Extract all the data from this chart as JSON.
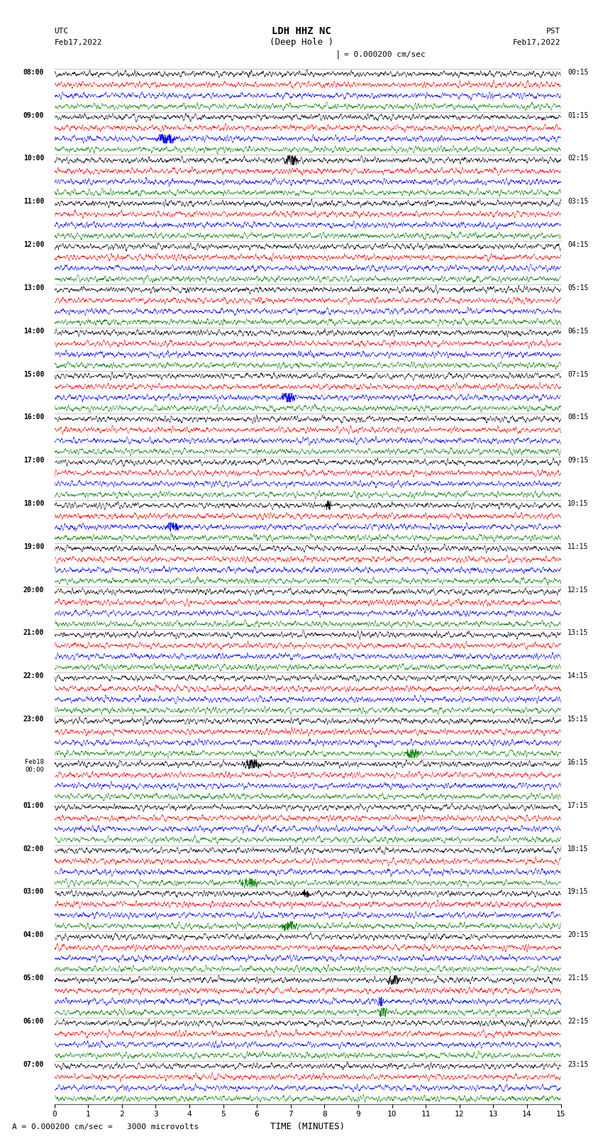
{
  "title_line1": "LDH HHZ NC",
  "title_line2": "(Deep Hole )",
  "scale_label": "= 0.000200 cm/sec",
  "bottom_label": "A = 0.000200 cm/sec =   3000 microvolts",
  "xlabel": "TIME (MINUTES)",
  "left_times": [
    "08:00",
    "09:00",
    "10:00",
    "11:00",
    "12:00",
    "13:00",
    "14:00",
    "15:00",
    "16:00",
    "17:00",
    "18:00",
    "19:00",
    "20:00",
    "21:00",
    "22:00",
    "23:00",
    "Feb18\n00:00",
    "01:00",
    "02:00",
    "03:00",
    "04:00",
    "05:00",
    "06:00",
    "07:00"
  ],
  "right_times": [
    "00:15",
    "01:15",
    "02:15",
    "03:15",
    "04:15",
    "05:15",
    "06:15",
    "07:15",
    "08:15",
    "09:15",
    "10:15",
    "11:15",
    "12:15",
    "13:15",
    "14:15",
    "15:15",
    "16:15",
    "17:15",
    "18:15",
    "19:15",
    "20:15",
    "21:15",
    "22:15",
    "23:15"
  ],
  "colors": [
    "black",
    "red",
    "blue",
    "green"
  ],
  "num_rows": 24,
  "traces_per_row": 4,
  "x_min": 0,
  "x_max": 15,
  "x_ticks": [
    0,
    1,
    2,
    3,
    4,
    5,
    6,
    7,
    8,
    9,
    10,
    11,
    12,
    13,
    14,
    15
  ],
  "amplitude": 0.06,
  "background_color": "white",
  "figsize": [
    8.5,
    16.13
  ],
  "dpi": 100
}
